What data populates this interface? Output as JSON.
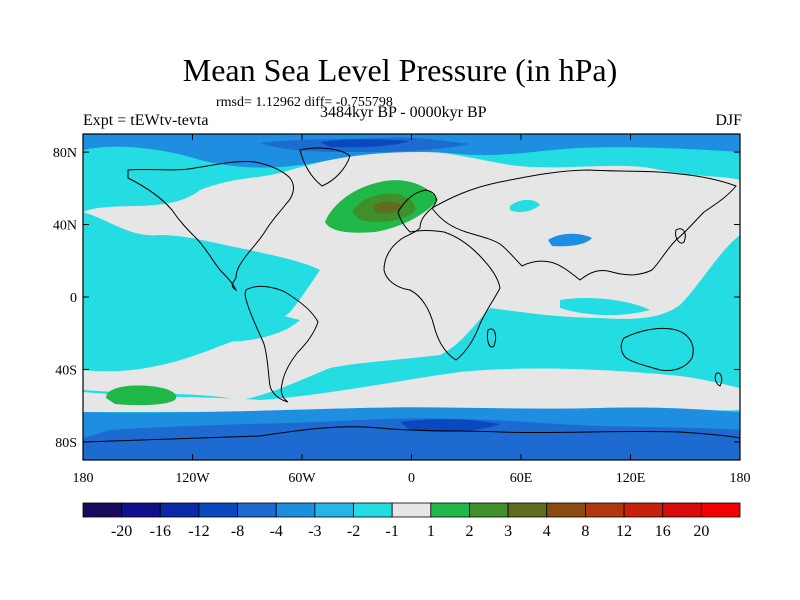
{
  "title": "Mean Sea Level Pressure (in hPa)",
  "stats_text": "rmsd= 1.12962 diff= -0.755798",
  "experiment_label": "Expt = tEWtv-tevta",
  "period_label": "3484kyr BP - 0000kyr BP",
  "season_label": "DJF",
  "lat_ticks": [
    {
      "value": 80,
      "label": "80N"
    },
    {
      "value": 40,
      "label": "40N"
    },
    {
      "value": 0,
      "label": "0"
    },
    {
      "value": -40,
      "label": "40S"
    },
    {
      "value": -80,
      "label": "80S"
    }
  ],
  "lon_ticks": [
    {
      "value": -180,
      "label": "180"
    },
    {
      "value": -120,
      "label": "120W"
    },
    {
      "value": -60,
      "label": "60W"
    },
    {
      "value": 0,
      "label": "0"
    },
    {
      "value": 60,
      "label": "60E"
    },
    {
      "value": 120,
      "label": "120E"
    },
    {
      "value": 180,
      "label": "180"
    }
  ],
  "colorbar": {
    "levels": [
      "-20",
      "-16",
      "-12",
      "-8",
      "-4",
      "-3",
      "-2",
      "-1",
      "1",
      "2",
      "3",
      "4",
      "8",
      "12",
      "16",
      "20"
    ],
    "colors": [
      "#1a0a5e",
      "#10108a",
      "#0a2aa8",
      "#0a48c0",
      "#1d6ad0",
      "#1e8fe0",
      "#27b5e8",
      "#24dde3",
      "#e6e6e6",
      "#21b84a",
      "#3f8f2a",
      "#5f6e1e",
      "#8a4a12",
      "#b0380f",
      "#c8200a",
      "#d80a0a",
      "#f00000"
    ]
  },
  "land_color": "#e6e6e6",
  "ocean_color": "#24dde3"
}
